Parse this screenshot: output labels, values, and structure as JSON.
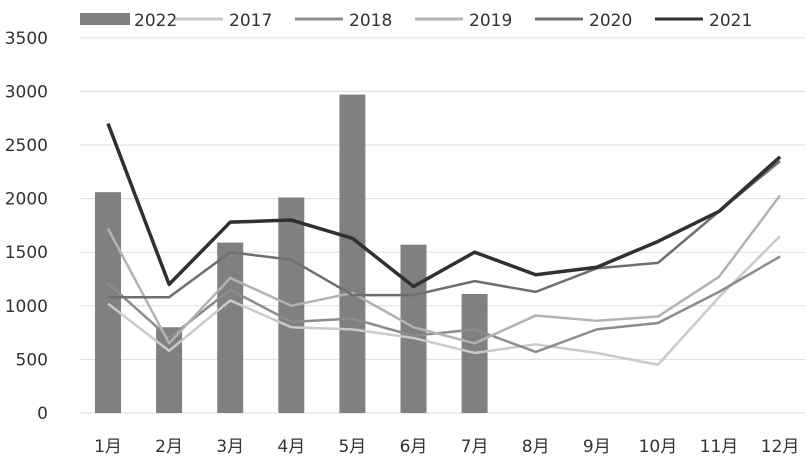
{
  "chart_data": {
    "type": "bar+line",
    "categories": [
      "1月",
      "2月",
      "3月",
      "4月",
      "5月",
      "6月",
      "7月",
      "8月",
      "9月",
      "10月",
      "11月",
      "12月"
    ],
    "ylim": [
      0,
      3500
    ],
    "yticks": [
      0,
      500,
      1000,
      1500,
      2000,
      2500,
      3000,
      3500
    ],
    "grid": true,
    "legend_position": "top",
    "series": [
      {
        "name": "2022",
        "kind": "bar",
        "color": "#808080",
        "values": [
          2060,
          800,
          1590,
          2010,
          2970,
          1570,
          1110,
          null,
          null,
          null,
          null,
          null
        ]
      },
      {
        "name": "2017",
        "kind": "line",
        "color": "#cacaca",
        "values": [
          1020,
          580,
          1050,
          800,
          780,
          700,
          560,
          640,
          560,
          450,
          1080,
          1650
        ]
      },
      {
        "name": "2018",
        "kind": "line",
        "color": "#8c8c8c",
        "values": [
          1210,
          700,
          1150,
          850,
          880,
          720,
          780,
          570,
          780,
          840,
          1130,
          1460
        ]
      },
      {
        "name": "2019",
        "kind": "line",
        "color": "#b2b2b2",
        "values": [
          1720,
          650,
          1260,
          1000,
          1120,
          800,
          650,
          910,
          860,
          900,
          1270,
          2030
        ]
      },
      {
        "name": "2020",
        "kind": "line",
        "color": "#6e6e6e",
        "values": [
          1080,
          1080,
          1500,
          1430,
          1100,
          1100,
          1230,
          1130,
          1350,
          1400,
          1880,
          2350
        ]
      },
      {
        "name": "2021",
        "kind": "line",
        "color": "#303030",
        "values": [
          2700,
          1200,
          1780,
          1800,
          1630,
          1180,
          1500,
          1290,
          1360,
          1600,
          1880,
          2390
        ]
      }
    ]
  }
}
